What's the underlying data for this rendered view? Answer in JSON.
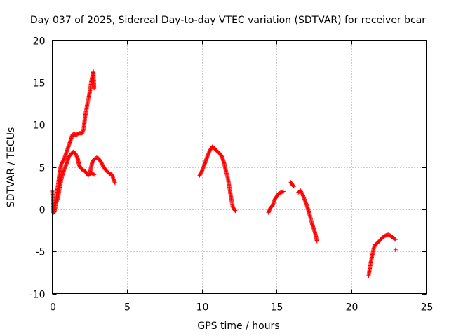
{
  "chart_data": {
    "type": "scatter",
    "title": "Day 037 of 2025, Sidereal Day-to-day VTEC variation (SDTVAR) for receiver bcar",
    "xlabel": "GPS time / hours",
    "ylabel": "SDTVAR / TECUs",
    "xlim": [
      0,
      25
    ],
    "ylim": [
      -10,
      20
    ],
    "xticks": [
      0,
      5,
      10,
      15,
      20,
      25
    ],
    "yticks": [
      -10,
      -5,
      0,
      5,
      10,
      15,
      20
    ],
    "grid": true,
    "marker": "+",
    "color": "#ff0000",
    "segments": [
      [
        [
          0.0,
          2.2
        ],
        [
          0.05,
          0.8
        ],
        [
          0.08,
          -0.4
        ],
        [
          0.15,
          -0.3
        ],
        [
          0.2,
          0.2
        ],
        [
          0.3,
          1.8
        ],
        [
          0.4,
          3.0
        ],
        [
          0.5,
          4.5
        ],
        [
          0.6,
          5.3
        ],
        [
          0.8,
          6.0
        ],
        [
          1.0,
          7.0
        ],
        [
          1.2,
          8.0
        ],
        [
          1.3,
          8.6
        ],
        [
          1.4,
          8.9
        ],
        [
          1.6,
          8.8
        ],
        [
          1.8,
          9.0
        ],
        [
          2.0,
          9.0
        ],
        [
          2.1,
          9.5
        ],
        [
          2.2,
          11.0
        ],
        [
          2.35,
          12.5
        ],
        [
          2.5,
          13.8
        ],
        [
          2.6,
          15.0
        ],
        [
          2.75,
          16.3
        ],
        [
          2.8,
          14.3
        ]
      ],
      [
        [
          0.3,
          0.9
        ],
        [
          0.4,
          1.5
        ],
        [
          0.5,
          2.6
        ],
        [
          0.6,
          3.5
        ],
        [
          0.7,
          4.2
        ],
        [
          0.8,
          4.7
        ],
        [
          1.0,
          5.6
        ],
        [
          1.1,
          6.2
        ],
        [
          1.25,
          6.5
        ],
        [
          1.4,
          6.8
        ],
        [
          1.55,
          6.6
        ],
        [
          1.7,
          6.0
        ],
        [
          1.8,
          5.2
        ],
        [
          1.9,
          4.9
        ],
        [
          2.0,
          4.7
        ],
        [
          2.2,
          4.5
        ],
        [
          2.4,
          4.0
        ],
        [
          2.6,
          4.3
        ],
        [
          2.8,
          4.1
        ]
      ],
      [
        [
          2.5,
          4.2
        ],
        [
          2.6,
          5.0
        ],
        [
          2.7,
          5.7
        ],
        [
          2.8,
          5.9
        ],
        [
          2.95,
          6.1
        ],
        [
          3.1,
          6.0
        ],
        [
          3.25,
          5.6
        ],
        [
          3.4,
          5.1
        ],
        [
          3.55,
          4.7
        ],
        [
          3.7,
          4.4
        ],
        [
          3.85,
          4.2
        ],
        [
          4.0,
          4.1
        ],
        [
          4.1,
          3.5
        ],
        [
          4.2,
          3.1
        ]
      ],
      [
        [
          9.85,
          4.0
        ],
        [
          10.0,
          4.5
        ],
        [
          10.2,
          5.4
        ],
        [
          10.4,
          6.4
        ],
        [
          10.55,
          7.0
        ],
        [
          10.7,
          7.4
        ],
        [
          10.85,
          7.2
        ],
        [
          11.0,
          6.9
        ],
        [
          11.2,
          6.6
        ],
        [
          11.35,
          6.2
        ],
        [
          11.5,
          5.4
        ],
        [
          11.6,
          4.6
        ],
        [
          11.75,
          3.6
        ],
        [
          11.85,
          2.5
        ],
        [
          11.95,
          1.4
        ],
        [
          12.05,
          0.4
        ],
        [
          12.15,
          0.0
        ],
        [
          12.25,
          -0.2
        ]
      ],
      [
        [
          14.45,
          -0.4
        ],
        [
          14.6,
          0.2
        ],
        [
          14.75,
          0.5
        ],
        [
          14.85,
          1.1
        ],
        [
          15.0,
          1.5
        ],
        [
          15.1,
          1.8
        ],
        [
          15.3,
          2.0
        ],
        [
          15.45,
          2.1
        ]
      ],
      [
        [
          15.95,
          3.2
        ],
        [
          16.05,
          2.9
        ],
        [
          16.15,
          2.7
        ]
      ],
      [
        [
          16.45,
          2.0
        ],
        [
          16.6,
          2.2
        ],
        [
          16.75,
          1.7
        ],
        [
          16.9,
          1.0
        ],
        [
          17.05,
          0.3
        ],
        [
          17.2,
          -0.6
        ],
        [
          17.35,
          -1.6
        ],
        [
          17.5,
          -2.4
        ],
        [
          17.6,
          -3.0
        ],
        [
          17.7,
          -3.8
        ]
      ],
      [
        [
          21.15,
          -7.9
        ],
        [
          21.25,
          -6.8
        ],
        [
          21.35,
          -5.8
        ],
        [
          21.5,
          -4.6
        ],
        [
          21.6,
          -4.2
        ],
        [
          21.8,
          -3.9
        ],
        [
          21.95,
          -3.6
        ],
        [
          22.1,
          -3.3
        ],
        [
          22.3,
          -3.1
        ],
        [
          22.5,
          -3.0
        ],
        [
          22.65,
          -3.2
        ],
        [
          22.8,
          -3.4
        ],
        [
          22.95,
          -3.6
        ]
      ]
    ],
    "points": [
      [
        22.95,
        -4.8
      ]
    ]
  }
}
